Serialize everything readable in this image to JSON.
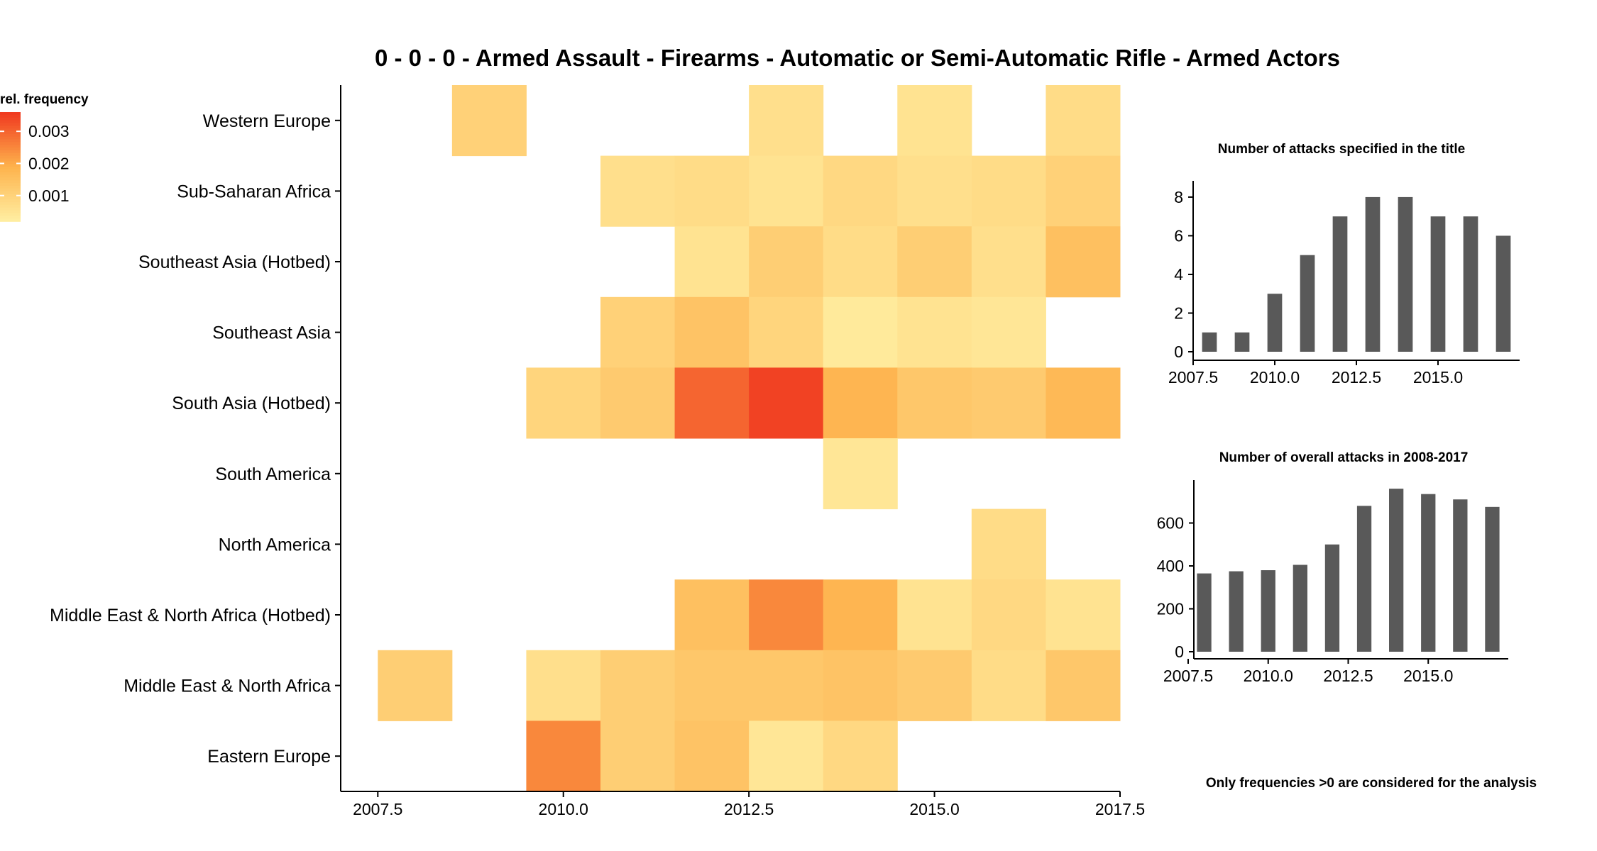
{
  "colors": {
    "low": "#FFEDA0",
    "mid": "#FEB24C",
    "high": "#F03B20",
    "bar": "#595959",
    "axis": "#000000"
  },
  "chart_data": [
    {
      "type": "heatmap",
      "title": "0 - 0 - 0 - Armed Assault - Firearms - Automatic or Semi-Automatic Rifle - Armed Actors",
      "xlabel": "",
      "ylabel": "",
      "xlim": [
        2007,
        2017.5
      ],
      "x_ticks": [
        "2007.5",
        "2010.0",
        "2012.5",
        "2015.0",
        "2017.5"
      ],
      "y_categories": [
        "Western Europe",
        "Sub-Saharan Africa",
        "Southeast Asia (Hotbed)",
        "Southeast Asia",
        "South Asia (Hotbed)",
        "South America",
        "North America",
        "Middle East & North Africa (Hotbed)",
        "Middle East & North Africa",
        "Eastern Europe"
      ],
      "legend_title": "rel. frequency",
      "legend_ticks": [
        "0.003",
        "0.002",
        "0.001"
      ],
      "legend_placement": "left",
      "color_range": [
        0.0002,
        0.0036
      ],
      "cells": [
        {
          "region": "Western Europe",
          "year": 2009,
          "value": 0.001
        },
        {
          "region": "Western Europe",
          "year": 2013,
          "value": 0.0006
        },
        {
          "region": "Western Europe",
          "year": 2015,
          "value": 0.0005
        },
        {
          "region": "Western Europe",
          "year": 2017,
          "value": 0.0007
        },
        {
          "region": "Sub-Saharan Africa",
          "year": 2011,
          "value": 0.0006
        },
        {
          "region": "Sub-Saharan Africa",
          "year": 2012,
          "value": 0.0007
        },
        {
          "region": "Sub-Saharan Africa",
          "year": 2013,
          "value": 0.0005
        },
        {
          "region": "Sub-Saharan Africa",
          "year": 2014,
          "value": 0.0008
        },
        {
          "region": "Sub-Saharan Africa",
          "year": 2015,
          "value": 0.0006
        },
        {
          "region": "Sub-Saharan Africa",
          "year": 2016,
          "value": 0.0007
        },
        {
          "region": "Sub-Saharan Africa",
          "year": 2017,
          "value": 0.001
        },
        {
          "region": "Southeast Asia (Hotbed)",
          "year": 2012,
          "value": 0.0005
        },
        {
          "region": "Southeast Asia (Hotbed)",
          "year": 2013,
          "value": 0.0011
        },
        {
          "region": "Southeast Asia (Hotbed)",
          "year": 2014,
          "value": 0.0007
        },
        {
          "region": "Southeast Asia (Hotbed)",
          "year": 2015,
          "value": 0.0011
        },
        {
          "region": "Southeast Asia (Hotbed)",
          "year": 2016,
          "value": 0.0006
        },
        {
          "region": "Southeast Asia (Hotbed)",
          "year": 2017,
          "value": 0.0015
        },
        {
          "region": "Southeast Asia",
          "year": 2011,
          "value": 0.001
        },
        {
          "region": "Southeast Asia",
          "year": 2012,
          "value": 0.0014
        },
        {
          "region": "Southeast Asia",
          "year": 2013,
          "value": 0.0009
        },
        {
          "region": "Southeast Asia",
          "year": 2014,
          "value": 0.0003
        },
        {
          "region": "Southeast Asia",
          "year": 2015,
          "value": 0.0005
        },
        {
          "region": "Southeast Asia",
          "year": 2016,
          "value": 0.0004
        },
        {
          "region": "South Asia (Hotbed)",
          "year": 2010,
          "value": 0.0009
        },
        {
          "region": "South Asia (Hotbed)",
          "year": 2011,
          "value": 0.0012
        },
        {
          "region": "South Asia (Hotbed)",
          "year": 2012,
          "value": 0.003
        },
        {
          "region": "South Asia (Hotbed)",
          "year": 2013,
          "value": 0.0035
        },
        {
          "region": "South Asia (Hotbed)",
          "year": 2014,
          "value": 0.0018
        },
        {
          "region": "South Asia (Hotbed)",
          "year": 2015,
          "value": 0.0013
        },
        {
          "region": "South Asia (Hotbed)",
          "year": 2016,
          "value": 0.0012
        },
        {
          "region": "South Asia (Hotbed)",
          "year": 2017,
          "value": 0.0017
        },
        {
          "region": "South America",
          "year": 2014,
          "value": 0.0004
        },
        {
          "region": "North America",
          "year": 2016,
          "value": 0.0007
        },
        {
          "region": "Middle East & North Africa (Hotbed)",
          "year": 2012,
          "value": 0.0015
        },
        {
          "region": "Middle East & North Africa (Hotbed)",
          "year": 2013,
          "value": 0.0025
        },
        {
          "region": "Middle East & North Africa (Hotbed)",
          "year": 2014,
          "value": 0.0018
        },
        {
          "region": "Middle East & North Africa (Hotbed)",
          "year": 2015,
          "value": 0.0005
        },
        {
          "region": "Middle East & North Africa (Hotbed)",
          "year": 2016,
          "value": 0.0008
        },
        {
          "region": "Middle East & North Africa (Hotbed)",
          "year": 2017,
          "value": 0.0005
        },
        {
          "region": "Middle East & North Africa",
          "year": 2008,
          "value": 0.0011
        },
        {
          "region": "Middle East & North Africa",
          "year": 2010,
          "value": 0.0006
        },
        {
          "region": "Middle East & North Africa",
          "year": 2011,
          "value": 0.0011
        },
        {
          "region": "Middle East & North Africa",
          "year": 2012,
          "value": 0.0013
        },
        {
          "region": "Middle East & North Africa",
          "year": 2013,
          "value": 0.0013
        },
        {
          "region": "Middle East & North Africa",
          "year": 2014,
          "value": 0.0014
        },
        {
          "region": "Middle East & North Africa",
          "year": 2015,
          "value": 0.0012
        },
        {
          "region": "Middle East & North Africa",
          "year": 2016,
          "value": 0.0007
        },
        {
          "region": "Middle East & North Africa",
          "year": 2017,
          "value": 0.0013
        },
        {
          "region": "Eastern Europe",
          "year": 2010,
          "value": 0.0025
        },
        {
          "region": "Eastern Europe",
          "year": 2011,
          "value": 0.0011
        },
        {
          "region": "Eastern Europe",
          "year": 2012,
          "value": 0.0014
        },
        {
          "region": "Eastern Europe",
          "year": 2013,
          "value": 0.0004
        },
        {
          "region": "Eastern Europe",
          "year": 2014,
          "value": 0.0008
        }
      ]
    },
    {
      "type": "bar",
      "title": "Number of attacks specified in the title",
      "xlabel": "",
      "ylabel": "",
      "x": [
        2008,
        2009,
        2010,
        2011,
        2012,
        2013,
        2014,
        2015,
        2016,
        2017
      ],
      "values": [
        1,
        1,
        3,
        5,
        7,
        8,
        8,
        7,
        7,
        6
      ],
      "xlim": [
        2007.5,
        2017.5
      ],
      "ylim": [
        0,
        8.4
      ],
      "x_ticks": [
        "2007.5",
        "2010.0",
        "2012.5",
        "2015.0"
      ],
      "y_ticks": [
        "0",
        "2",
        "4",
        "6",
        "8"
      ]
    },
    {
      "type": "bar",
      "title": "Number of overall attacks in 2008-2017",
      "xlabel": "",
      "ylabel": "",
      "x": [
        2008,
        2009,
        2010,
        2011,
        2012,
        2013,
        2014,
        2015,
        2016,
        2017
      ],
      "values": [
        365,
        375,
        380,
        405,
        500,
        680,
        760,
        735,
        710,
        675
      ],
      "xlim": [
        2007.5,
        2017.5
      ],
      "ylim": [
        0,
        800
      ],
      "x_ticks": [
        "2007.5",
        "2010.0",
        "2012.5",
        "2015.0"
      ],
      "y_ticks": [
        "0",
        "200",
        "400",
        "600"
      ]
    }
  ],
  "footnote": "Only frequencies >0 are considered for the analysis"
}
